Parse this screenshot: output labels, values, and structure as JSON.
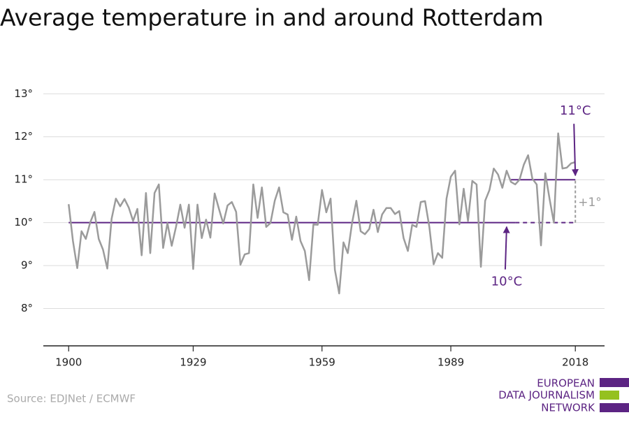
{
  "chart_data": {
    "type": "line",
    "title": "Average temperature in and around Rotterdam",
    "x": [
      1900,
      1901,
      1902,
      1903,
      1904,
      1905,
      1906,
      1907,
      1908,
      1909,
      1910,
      1911,
      1912,
      1913,
      1914,
      1915,
      1916,
      1917,
      1918,
      1919,
      1920,
      1921,
      1922,
      1923,
      1924,
      1925,
      1926,
      1927,
      1928,
      1929,
      1930,
      1931,
      1932,
      1933,
      1934,
      1935,
      1936,
      1937,
      1938,
      1939,
      1940,
      1941,
      1942,
      1943,
      1944,
      1945,
      1946,
      1947,
      1948,
      1949,
      1950,
      1951,
      1952,
      1953,
      1954,
      1955,
      1956,
      1957,
      1958,
      1959,
      1960,
      1961,
      1962,
      1963,
      1964,
      1965,
      1966,
      1967,
      1968,
      1969,
      1970,
      1971,
      1972,
      1973,
      1974,
      1975,
      1976,
      1977,
      1978,
      1979,
      1980,
      1981,
      1982,
      1983,
      1984,
      1985,
      1986,
      1987,
      1988,
      1989,
      1990,
      1991,
      1992,
      1993,
      1994,
      1995,
      1996,
      1997,
      1998,
      1999,
      2000,
      2001,
      2002,
      2003,
      2004,
      2005,
      2006,
      2007,
      2008,
      2009,
      2010,
      2011,
      2012,
      2013,
      2014,
      2015,
      2016,
      2017,
      2018
    ],
    "series": [
      {
        "color": "#9b9b9b",
        "values": [
          10.43,
          9.57,
          8.94,
          9.8,
          9.62,
          10.0,
          10.25,
          9.62,
          9.37,
          8.93,
          10.09,
          10.56,
          10.38,
          10.55,
          10.35,
          10.04,
          10.32,
          9.24,
          10.69,
          9.29,
          10.69,
          10.89,
          9.41,
          9.99,
          9.46,
          9.9,
          10.42,
          9.88,
          10.42,
          8.92,
          10.42,
          9.64,
          10.07,
          9.65,
          10.68,
          10.32,
          9.98,
          10.4,
          10.48,
          10.25,
          9.02,
          9.26,
          9.29,
          10.89,
          10.11,
          10.82,
          9.9,
          9.99,
          10.51,
          10.82,
          10.24,
          10.19,
          9.6,
          10.14,
          9.57,
          9.34,
          8.66,
          9.96,
          9.95,
          10.76,
          10.24,
          10.56,
          8.9,
          8.35,
          9.54,
          9.29,
          9.99,
          10.51,
          9.8,
          9.73,
          9.85,
          10.3,
          9.78,
          10.19,
          10.34,
          10.34,
          10.2,
          10.27,
          9.64,
          9.34,
          9.95,
          9.9,
          10.48,
          10.5,
          9.9,
          9.03,
          9.29,
          9.18,
          10.56,
          11.07,
          11.21,
          9.96,
          10.79,
          10.04,
          10.97,
          10.89,
          8.97,
          10.51,
          10.76,
          11.26,
          11.12,
          10.81,
          11.21,
          10.95,
          10.89,
          11.0,
          11.35,
          11.57,
          11.02,
          10.89,
          9.47,
          11.15,
          10.55,
          10.0,
          12.08,
          11.26,
          11.28,
          11.38,
          11.41
        ]
      }
    ],
    "xlim": [
      1894.1,
      2024.8
    ],
    "xticks": [
      1900,
      1929,
      1959,
      1989,
      2018
    ],
    "ylim": [
      7.13,
      13.2
    ],
    "yticks": [
      {
        "value": 8,
        "label": "8°"
      },
      {
        "value": 9,
        "label": "9°"
      },
      {
        "value": 10,
        "label": "10°"
      },
      {
        "value": 11,
        "label": "11°"
      },
      {
        "value": 12,
        "label": "12°"
      },
      {
        "value": 13,
        "label": "13°"
      }
    ],
    "grid": true,
    "reference_lines": [
      {
        "value": 10,
        "x": [
          1900,
          2018
        ],
        "dashed_from": 2004,
        "label": "10°C",
        "label_x": 2002,
        "color": "#5c2483"
      },
      {
        "value": 11,
        "x": [
          2003,
          2018
        ],
        "label": "11°C",
        "label_x": 2018,
        "color": "#5c2483"
      }
    ],
    "difference": {
      "label": "+1°",
      "x": 2018,
      "from": 10,
      "to": 11,
      "color": "#9b9b9b"
    },
    "source": "Source: EDJNet / ECMWF",
    "logo": [
      "EUROPEAN",
      "DATA JOURNALISM",
      "NETWORK"
    ]
  }
}
